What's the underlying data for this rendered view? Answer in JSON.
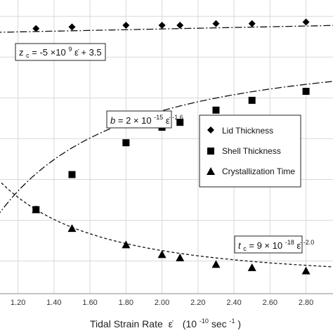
{
  "chart_data": {
    "type": "scatter",
    "x_label": {
      "main": "Tidal Strain Rate",
      "symbol": "ε̇",
      "unit_base": "(10",
      "unit_exp": "-10",
      "unit_mid": " sec",
      "unit_exp2": "-1",
      "unit_end": ")"
    },
    "x_ticks": [
      "1.20",
      "1.40",
      "1.60",
      "1.80",
      "2.00",
      "2.20",
      "2.40",
      "2.60",
      "2.80"
    ],
    "xlim": [
      1.1,
      2.95
    ],
    "grid": true,
    "legend_position": "right-middle",
    "series": [
      {
        "name": "Lid Thickness",
        "marker": "diamond",
        "color": "#000000",
        "x": [
          1.3,
          1.5,
          1.8,
          2.0,
          2.1,
          2.3,
          2.5,
          2.8
        ],
        "y": [
          2.85,
          2.87,
          2.89,
          2.89,
          2.89,
          2.91,
          2.91,
          2.93
        ],
        "fit_equation": {
          "lhs": "z",
          "lhs_sub": "c",
          "mid": " = -5 ×10",
          "exp": "9",
          "tail": " ε̇  + 3.5"
        }
      },
      {
        "name": "Shell Thickness",
        "marker": "square",
        "color": "#000000",
        "x": [
          1.3,
          1.5,
          1.8,
          2.0,
          2.1,
          2.3,
          2.5,
          2.8
        ],
        "y": [
          0.63,
          1.06,
          1.45,
          1.64,
          1.7,
          1.85,
          1.97,
          2.08
        ],
        "fit_equation": {
          "lhs": "b",
          "mid": " = 2 × 10",
          "exp": "-15",
          "tail": " ε̇",
          "tail_exp": " -1.6"
        }
      },
      {
        "name": "Crystallization Time",
        "marker": "triangle",
        "color": "#000000",
        "x": [
          1.3,
          1.5,
          1.8,
          2.0,
          2.1,
          2.3,
          2.5,
          2.8
        ],
        "y": [
          0.63,
          0.4,
          0.2,
          0.08,
          0.04,
          -0.04,
          -0.08,
          -0.12
        ],
        "fit_equation": {
          "lhs": "t",
          "lhs_sub": "c",
          "mid": " = 9 × 10",
          "exp": "-18",
          "tail": " ε̇",
          "tail_exp": " -2.0"
        }
      }
    ]
  }
}
